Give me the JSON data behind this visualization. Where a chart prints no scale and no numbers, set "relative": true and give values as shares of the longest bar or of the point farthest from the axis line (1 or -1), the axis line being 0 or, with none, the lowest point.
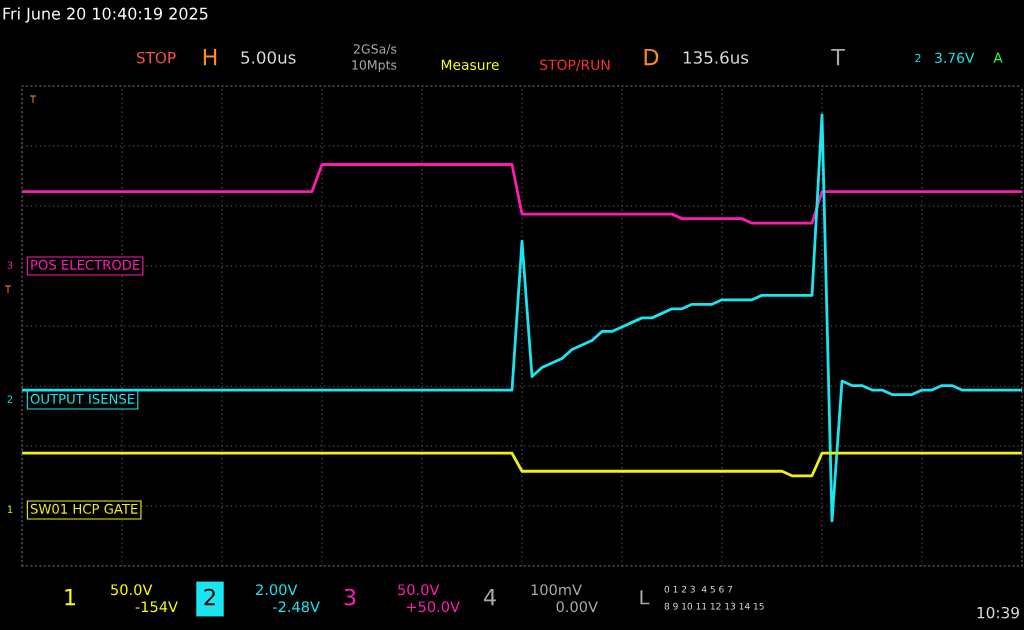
{
  "chart_data": {
    "type": "line",
    "title": "Fri June 20 10:40:19 2025",
    "relative": true,
    "grid": true,
    "legend": "left",
    "categories": [
      null,
      null,
      null,
      null,
      null,
      null,
      null,
      null,
      null,
      null,
      null,
      null,
      null,
      null,
      null,
      null,
      null,
      null,
      null,
      null,
      null,
      null,
      null,
      null,
      null,
      null,
      null,
      null,
      null,
      null,
      null,
      null,
      null,
      null,
      null,
      null,
      null,
      null,
      null,
      null,
      null,
      null,
      null,
      null,
      null,
      null,
      null,
      null,
      null,
      null,
      null,
      null,
      null,
      null,
      null,
      null,
      null,
      null,
      null,
      null,
      null,
      null,
      null,
      null,
      null,
      null,
      null,
      null,
      null,
      null,
      null,
      null,
      null,
      null,
      null,
      null,
      null,
      null,
      null,
      null,
      null,
      null,
      null,
      null,
      null,
      null,
      null,
      null,
      null,
      null,
      null,
      null,
      null,
      null,
      null,
      null,
      null,
      null,
      null,
      null,
      null
    ],
    "series": [
      {
        "name": "POS ELECTRODE",
        "color": "#ff1ab4",
        "values": [
          0.83,
          0.83,
          0.83,
          0.83,
          0.83,
          0.83,
          0.83,
          0.83,
          0.83,
          0.83,
          0.83,
          0.83,
          0.83,
          0.83,
          0.83,
          0.83,
          0.83,
          0.83,
          0.83,
          0.83,
          0.83,
          0.83,
          0.83,
          0.83,
          0.83,
          0.83,
          0.83,
          0.83,
          0.83,
          0.83,
          0.89,
          0.89,
          0.89,
          0.89,
          0.89,
          0.89,
          0.89,
          0.89,
          0.89,
          0.89,
          0.89,
          0.89,
          0.89,
          0.89,
          0.89,
          0.89,
          0.89,
          0.89,
          0.89,
          0.89,
          0.78,
          0.78,
          0.78,
          0.78,
          0.78,
          0.78,
          0.78,
          0.78,
          0.78,
          0.78,
          0.78,
          0.78,
          0.78,
          0.78,
          0.78,
          0.78,
          0.77,
          0.77,
          0.77,
          0.77,
          0.77,
          0.77,
          0.77,
          0.76,
          0.76,
          0.76,
          0.76,
          0.76,
          0.76,
          0.76,
          0.83,
          0.83,
          0.83,
          0.83,
          0.83,
          0.83,
          0.83,
          0.83,
          0.83,
          0.83,
          0.83,
          0.83,
          0.83,
          0.83,
          0.83,
          0.83,
          0.83,
          0.83,
          0.83,
          0.83,
          0.83
        ]
      },
      {
        "name": "OUTPUT ISENSE",
        "color": "#19e6f0",
        "values": [
          0.39,
          0.39,
          0.39,
          0.39,
          0.39,
          0.39,
          0.39,
          0.39,
          0.39,
          0.39,
          0.39,
          0.39,
          0.39,
          0.39,
          0.39,
          0.39,
          0.39,
          0.39,
          0.39,
          0.39,
          0.39,
          0.39,
          0.39,
          0.39,
          0.39,
          0.39,
          0.39,
          0.39,
          0.39,
          0.39,
          0.39,
          0.39,
          0.39,
          0.39,
          0.39,
          0.39,
          0.39,
          0.39,
          0.39,
          0.39,
          0.39,
          0.39,
          0.39,
          0.39,
          0.39,
          0.39,
          0.39,
          0.39,
          0.39,
          0.39,
          0.72,
          0.42,
          0.44,
          0.45,
          0.46,
          0.48,
          0.49,
          0.5,
          0.52,
          0.52,
          0.53,
          0.54,
          0.55,
          0.55,
          0.56,
          0.57,
          0.57,
          0.58,
          0.58,
          0.58,
          0.59,
          0.59,
          0.59,
          0.59,
          0.6,
          0.6,
          0.6,
          0.6,
          0.6,
          0.6,
          1.0,
          0.1,
          0.41,
          0.4,
          0.4,
          0.39,
          0.39,
          0.38,
          0.38,
          0.38,
          0.39,
          0.39,
          0.4,
          0.4,
          0.39,
          0.39,
          0.39,
          0.39,
          0.39,
          0.39,
          0.39
        ]
      },
      {
        "name": "SW01 HCP GATE",
        "color": "#f0f014",
        "values": [
          0.25,
          0.25,
          0.25,
          0.25,
          0.25,
          0.25,
          0.25,
          0.25,
          0.25,
          0.25,
          0.25,
          0.25,
          0.25,
          0.25,
          0.25,
          0.25,
          0.25,
          0.25,
          0.25,
          0.25,
          0.25,
          0.25,
          0.25,
          0.25,
          0.25,
          0.25,
          0.25,
          0.25,
          0.25,
          0.25,
          0.25,
          0.25,
          0.25,
          0.25,
          0.25,
          0.25,
          0.25,
          0.25,
          0.25,
          0.25,
          0.25,
          0.25,
          0.25,
          0.25,
          0.25,
          0.25,
          0.25,
          0.25,
          0.25,
          0.25,
          0.21,
          0.21,
          0.21,
          0.21,
          0.21,
          0.21,
          0.21,
          0.21,
          0.21,
          0.21,
          0.21,
          0.21,
          0.21,
          0.21,
          0.21,
          0.21,
          0.21,
          0.21,
          0.21,
          0.21,
          0.21,
          0.21,
          0.21,
          0.21,
          0.21,
          0.21,
          0.21,
          0.2,
          0.2,
          0.2,
          0.25,
          0.25,
          0.25,
          0.25,
          0.25,
          0.25,
          0.25,
          0.25,
          0.25,
          0.25,
          0.25,
          0.25,
          0.25,
          0.25,
          0.25,
          0.25,
          0.25,
          0.25,
          0.25,
          0.25,
          0.25
        ]
      }
    ],
    "annotations": [
      "STOP",
      "H",
      "5.00us",
      "2GSa/s",
      "10Mpts",
      "Measure",
      "STOP/RUN",
      "D",
      "135.6us",
      "T",
      "2",
      "3.76V",
      "A",
      "1",
      "50.0V",
      "-154V",
      "2",
      "2.00V",
      "-2.48V",
      "3",
      "50.0V",
      "+50.0V",
      "4",
      "100mV",
      "0.00V",
      "L",
      "0 1 2 3  4 5 6 7",
      "8 9 10 11 12 13 14 15",
      "10:39",
      "3",
      "2",
      "1",
      "T",
      "T"
    ]
  }
}
